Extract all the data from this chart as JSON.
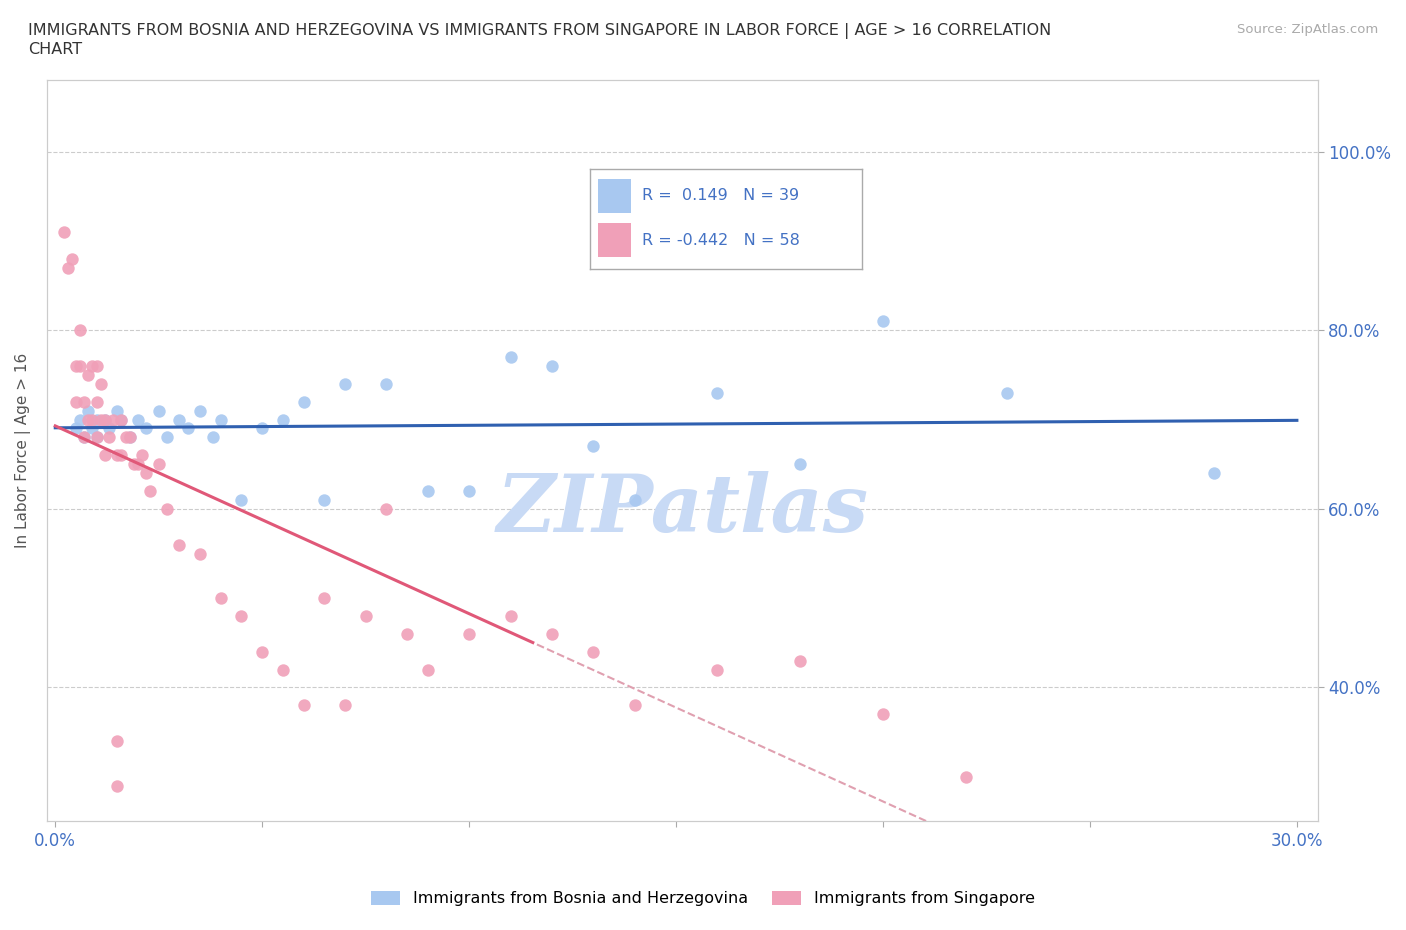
{
  "title": "IMMIGRANTS FROM BOSNIA AND HERZEGOVINA VS IMMIGRANTS FROM SINGAPORE IN LABOR FORCE | AGE > 16 CORRELATION\nCHART",
  "source_text": "Source: ZipAtlas.com",
  "ylabel": "In Labor Force | Age > 16",
  "xlim": [
    -0.002,
    0.305
  ],
  "ylim": [
    0.25,
    1.08
  ],
  "x_ticks": [
    0.0,
    0.05,
    0.1,
    0.15,
    0.2,
    0.25,
    0.3
  ],
  "y_ticks_right": [
    0.4,
    0.6,
    0.8,
    1.0
  ],
  "y_tick_labels_right": [
    "40.0%",
    "60.0%",
    "80.0%",
    "100.0%"
  ],
  "bosnia_color": "#a8c8f0",
  "singapore_color": "#f0a0b8",
  "bosnia_line_color": "#3060b0",
  "singapore_line_color": "#e05878",
  "trendline_dash_color": "#e0a0b0",
  "watermark_color": "#c8daf5",
  "watermark_text": "ZIPatlas",
  "bosnia_R": 0.149,
  "bosnia_N": 39,
  "singapore_R": -0.442,
  "singapore_N": 58,
  "bosnia_scatter_x": [
    0.005,
    0.006,
    0.007,
    0.008,
    0.009,
    0.01,
    0.01,
    0.012,
    0.013,
    0.015,
    0.016,
    0.018,
    0.02,
    0.022,
    0.025,
    0.027,
    0.03,
    0.032,
    0.035,
    0.038,
    0.04,
    0.045,
    0.05,
    0.055,
    0.06,
    0.065,
    0.07,
    0.08,
    0.09,
    0.1,
    0.11,
    0.12,
    0.13,
    0.14,
    0.16,
    0.18,
    0.2,
    0.23,
    0.28
  ],
  "bosnia_scatter_y": [
    0.69,
    0.7,
    0.68,
    0.71,
    0.69,
    0.7,
    0.68,
    0.7,
    0.69,
    0.71,
    0.7,
    0.68,
    0.7,
    0.69,
    0.71,
    0.68,
    0.7,
    0.69,
    0.71,
    0.68,
    0.7,
    0.61,
    0.69,
    0.7,
    0.72,
    0.61,
    0.74,
    0.74,
    0.62,
    0.62,
    0.77,
    0.76,
    0.67,
    0.61,
    0.73,
    0.65,
    0.81,
    0.73,
    0.64
  ],
  "singapore_scatter_x": [
    0.002,
    0.003,
    0.004,
    0.005,
    0.005,
    0.006,
    0.006,
    0.007,
    0.007,
    0.008,
    0.008,
    0.009,
    0.009,
    0.01,
    0.01,
    0.01,
    0.011,
    0.011,
    0.012,
    0.012,
    0.013,
    0.014,
    0.015,
    0.016,
    0.016,
    0.017,
    0.018,
    0.019,
    0.02,
    0.021,
    0.022,
    0.023,
    0.025,
    0.027,
    0.03,
    0.035,
    0.04,
    0.045,
    0.05,
    0.055,
    0.06,
    0.065,
    0.07,
    0.075,
    0.08,
    0.085,
    0.09,
    0.1,
    0.11,
    0.12,
    0.13,
    0.14,
    0.16,
    0.18,
    0.2,
    0.22,
    0.015,
    0.015
  ],
  "singapore_scatter_y": [
    0.91,
    0.87,
    0.88,
    0.76,
    0.72,
    0.8,
    0.76,
    0.72,
    0.68,
    0.75,
    0.7,
    0.76,
    0.7,
    0.76,
    0.72,
    0.68,
    0.74,
    0.7,
    0.7,
    0.66,
    0.68,
    0.7,
    0.66,
    0.7,
    0.66,
    0.68,
    0.68,
    0.65,
    0.65,
    0.66,
    0.64,
    0.62,
    0.65,
    0.6,
    0.56,
    0.55,
    0.5,
    0.48,
    0.44,
    0.42,
    0.38,
    0.5,
    0.38,
    0.48,
    0.6,
    0.46,
    0.42,
    0.46,
    0.48,
    0.46,
    0.44,
    0.38,
    0.42,
    0.43,
    0.37,
    0.3,
    0.34,
    0.29
  ]
}
